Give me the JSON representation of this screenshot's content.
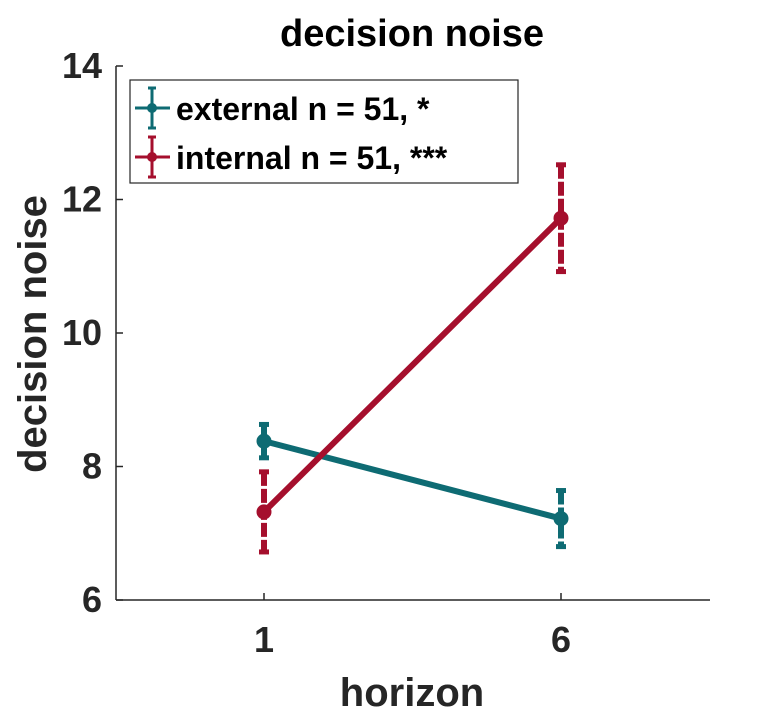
{
  "chart_data": {
    "type": "line",
    "title": "decision noise",
    "xlabel": "horizon",
    "ylabel": "decision noise",
    "categories": [
      "1",
      "6"
    ],
    "ylim": [
      6,
      14
    ],
    "yticks": [
      "6",
      "8",
      "10",
      "12",
      "14"
    ],
    "grid": false,
    "legend_position": "top-left",
    "series": [
      {
        "name": "external n = 51, *",
        "color": "#0e6b73",
        "values": [
          8.38,
          7.22
        ],
        "errors": [
          0.25,
          0.42
        ]
      },
      {
        "name": "internal n = 51, ***",
        "color": "#a50f2d",
        "values": [
          7.32,
          11.72
        ],
        "errors": [
          0.6,
          0.8
        ]
      }
    ]
  }
}
